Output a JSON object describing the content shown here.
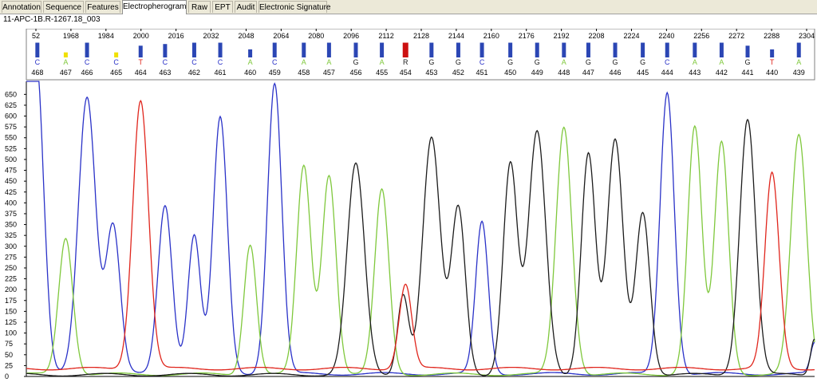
{
  "tabs": [
    {
      "label": "Annotation",
      "active": false
    },
    {
      "label": "Sequence",
      "active": false
    },
    {
      "label": "Features",
      "active": false
    },
    {
      "label": "Electropherogram",
      "active": true
    },
    {
      "label": "Raw",
      "active": false
    },
    {
      "label": "EPT",
      "active": false
    },
    {
      "label": "Audit",
      "active": false
    },
    {
      "label": "Electronic Signature",
      "active": false
    }
  ],
  "sample_name": "11-APC-1B.R-1267.18_003",
  "colors": {
    "A": "#7fc83c",
    "C": "#2a32c8",
    "G": "#1c1c1c",
    "T": "#e0261d",
    "quality_bar": "#2b46b4",
    "low_quality": "#f0e000",
    "mixed": "#cc1010"
  },
  "chart_data": {
    "type": "line",
    "scan_ticks": [
      "52",
      "1968",
      "1984",
      "2000",
      "2016",
      "2032",
      "2048",
      "2064",
      "2080",
      "2096",
      "2112",
      "2128",
      "2144",
      "2160",
      "2176",
      "2192",
      "2208",
      "2224",
      "2240",
      "2256",
      "2272",
      "2288",
      "2304"
    ],
    "y_ticks": [
      0,
      25,
      50,
      75,
      100,
      125,
      150,
      175,
      200,
      225,
      250,
      275,
      300,
      325,
      350,
      375,
      400,
      425,
      450,
      475,
      500,
      525,
      550,
      575,
      600,
      625,
      650
    ],
    "ylim": [
      0,
      680
    ],
    "xlim": [
      0,
      1000
    ],
    "bases": [
      {
        "base": "C",
        "pos": "468",
        "x": 14
      },
      {
        "base": "A",
        "pos": "467",
        "x": 50
      },
      {
        "base": "C",
        "pos": "466",
        "x": 77
      },
      {
        "base": "C",
        "pos": "465",
        "x": 114
      },
      {
        "base": "T",
        "pos": "464",
        "x": 145
      },
      {
        "base": "C",
        "pos": "463",
        "x": 176
      },
      {
        "base": "C",
        "pos": "462",
        "x": 213
      },
      {
        "base": "C",
        "pos": "461",
        "x": 246
      },
      {
        "base": "A",
        "pos": "460",
        "x": 284
      },
      {
        "base": "C",
        "pos": "459",
        "x": 315
      },
      {
        "base": "A",
        "pos": "458",
        "x": 352
      },
      {
        "base": "A",
        "pos": "457",
        "x": 384
      },
      {
        "base": "G",
        "pos": "456",
        "x": 418
      },
      {
        "base": "A",
        "pos": "455",
        "x": 451
      },
      {
        "base": "R",
        "pos": "454",
        "x": 481
      },
      {
        "base": "G",
        "pos": "453",
        "x": 514
      },
      {
        "base": "G",
        "pos": "452",
        "x": 548
      },
      {
        "base": "C",
        "pos": "451",
        "x": 578
      },
      {
        "base": "G",
        "pos": "450",
        "x": 614
      },
      {
        "base": "G",
        "pos": "449",
        "x": 648
      },
      {
        "base": "A",
        "pos": "448",
        "x": 682
      },
      {
        "base": "G",
        "pos": "447",
        "x": 713
      },
      {
        "base": "G",
        "pos": "446",
        "x": 747
      },
      {
        "base": "G",
        "pos": "445",
        "x": 782
      },
      {
        "base": "C",
        "pos": "444",
        "x": 813
      },
      {
        "base": "A",
        "pos": "443",
        "x": 848
      },
      {
        "base": "A",
        "pos": "442",
        "x": 882
      },
      {
        "base": "G",
        "pos": "441",
        "x": 915
      },
      {
        "base": "T",
        "pos": "440",
        "x": 946
      },
      {
        "base": "A",
        "pos": "439",
        "x": 980
      }
    ],
    "quality": [
      44,
      15,
      44,
      15,
      35,
      40,
      44,
      44,
      24,
      44,
      44,
      44,
      44,
      44,
      44,
      44,
      44,
      44,
      44,
      44,
      44,
      44,
      44,
      44,
      44,
      44,
      44,
      35,
      24,
      44
    ],
    "series": [
      {
        "base": "C",
        "peaks": [
          [
            0,
            500,
            8
          ],
          [
            14,
            625,
            9
          ],
          [
            77,
            640,
            11
          ],
          [
            110,
            340,
            9
          ],
          [
            176,
            390,
            9
          ],
          [
            213,
            320,
            8
          ],
          [
            246,
            590,
            9
          ],
          [
            315,
            670,
            9
          ],
          [
            578,
            350,
            8
          ],
          [
            813,
            650,
            9
          ],
          [
            1000,
            70,
            5
          ]
        ],
        "baseline": 6
      },
      {
        "base": "A",
        "peaks": [
          [
            50,
            315,
            9
          ],
          [
            284,
            300,
            8
          ],
          [
            352,
            480,
            9
          ],
          [
            384,
            460,
            9
          ],
          [
            451,
            425,
            9
          ],
          [
            682,
            570,
            10
          ],
          [
            848,
            570,
            9
          ],
          [
            882,
            535,
            9
          ],
          [
            980,
            550,
            10
          ]
        ],
        "baseline": 5
      },
      {
        "base": "G",
        "peaks": [
          [
            418,
            485,
            11
          ],
          [
            478,
            185,
            7
          ],
          [
            514,
            545,
            11
          ],
          [
            548,
            385,
            9
          ],
          [
            614,
            485,
            9
          ],
          [
            648,
            560,
            11
          ],
          [
            713,
            510,
            9
          ],
          [
            747,
            540,
            10
          ],
          [
            782,
            375,
            9
          ],
          [
            915,
            590,
            10
          ],
          [
            1000,
            85,
            5
          ]
        ],
        "baseline": 4
      },
      {
        "base": "T",
        "peaks": [
          [
            145,
            620,
            10
          ],
          [
            481,
            195,
            8
          ],
          [
            946,
            450,
            9
          ]
        ],
        "baseline": 18
      }
    ]
  }
}
